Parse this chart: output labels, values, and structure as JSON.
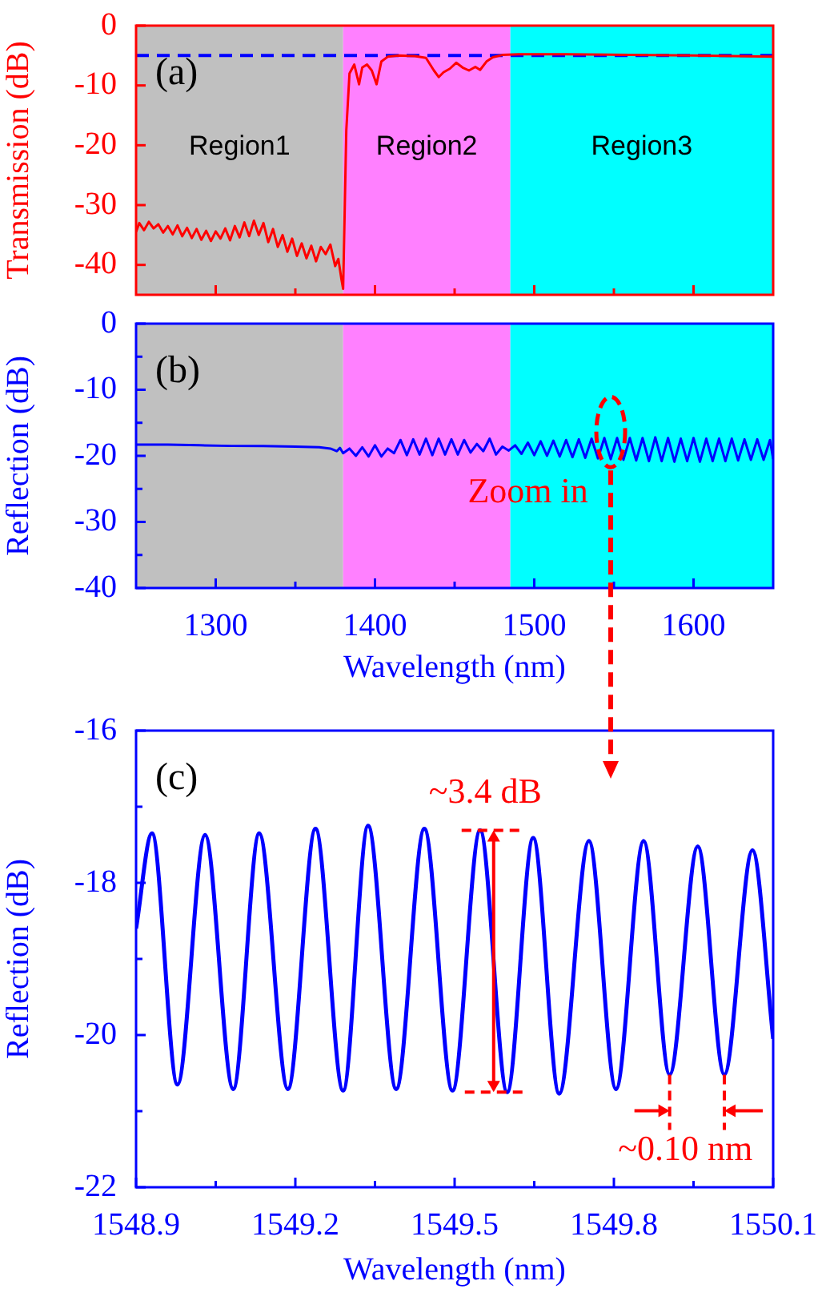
{
  "chart_data": [
    {
      "type": "line",
      "ylabel": "Transmission (dB)",
      "xlim": [
        1250,
        1650
      ],
      "ylim": [
        -45,
        0
      ],
      "tick_labels": "y",
      "xticks": [
        1300,
        {
          "value": 1350,
          "label": null
        },
        1400,
        {
          "value": 1450,
          "label": null
        },
        1500,
        {
          "value": 1550,
          "label": null
        },
        1600
      ],
      "yticks": [
        0,
        -10,
        -20,
        -30,
        -40
      ],
      "x": [
        1250,
        1252,
        1255,
        1258,
        1261,
        1264,
        1267,
        1270,
        1273,
        1276,
        1279,
        1282,
        1285,
        1288,
        1291,
        1294,
        1297,
        1300,
        1303,
        1306,
        1309,
        1312,
        1315,
        1318,
        1321,
        1324,
        1327,
        1330,
        1333,
        1336,
        1339,
        1342,
        1345,
        1348,
        1351,
        1354,
        1357,
        1360,
        1363,
        1366,
        1369,
        1372,
        1375,
        1377,
        1379,
        1380,
        1382,
        1384,
        1387,
        1390,
        1392,
        1395,
        1398,
        1401,
        1404,
        1408,
        1415,
        1425,
        1432,
        1437,
        1440,
        1443,
        1447,
        1451,
        1455,
        1459,
        1463,
        1466,
        1470,
        1474,
        1480,
        1490,
        1520,
        1560,
        1600,
        1650
      ],
      "series": [
        {
          "color": "#ff0000",
          "values": [
            -34.5,
            -33.0,
            -34.2,
            -32.8,
            -33.9,
            -33.2,
            -34.6,
            -33.5,
            -34.9,
            -33.4,
            -35.2,
            -33.8,
            -35.5,
            -34.0,
            -35.8,
            -34.3,
            -36.0,
            -34.4,
            -35.6,
            -33.9,
            -35.9,
            -33.5,
            -35.4,
            -32.9,
            -35.2,
            -32.6,
            -35.0,
            -33.0,
            -36.2,
            -34.0,
            -37.0,
            -35.0,
            -37.8,
            -35.6,
            -38.5,
            -36.4,
            -38.9,
            -36.8,
            -39.4,
            -37.0,
            -38.2,
            -36.6,
            -40.2,
            -39.0,
            -42.5,
            -44.0,
            -17.5,
            -8.0,
            -6.5,
            -9.8,
            -7.0,
            -6.5,
            -7.5,
            -9.8,
            -6.0,
            -5.2,
            -5.0,
            -5.1,
            -5.4,
            -7.5,
            -8.6,
            -7.8,
            -7.2,
            -6.2,
            -7.0,
            -7.5,
            -6.9,
            -7.4,
            -6.0,
            -5.3,
            -4.9,
            -4.8,
            -4.8,
            -4.9,
            -5.0,
            -5.2
          ]
        }
      ],
      "bands": [
        {
          "axis": "x",
          "from": 1250,
          "to": 1380,
          "label": "Region1",
          "color": "#c0c0c0"
        },
        {
          "axis": "x",
          "from": 1380,
          "to": 1485,
          "label": "Region2",
          "color": "#ff80ff"
        },
        {
          "axis": "x",
          "from": 1485,
          "to": 1650,
          "label": "Region3",
          "color": "#00ffff"
        }
      ],
      "ref_lines": [
        {
          "axis": "y",
          "value": -5,
          "color": "#0000ff",
          "line_style": "dashed"
        }
      ],
      "annotations": [
        "(a)"
      ]
    },
    {
      "type": "line",
      "xlabel": "Wavelength (nm)",
      "ylabel": "Reflection (dB)",
      "xlim": [
        1250,
        1650
      ],
      "ylim": [
        -40,
        0
      ],
      "xticks": [
        1300,
        {
          "value": 1350,
          "label": null
        },
        1400,
        {
          "value": 1450,
          "label": null
        },
        1500,
        {
          "value": 1550,
          "label": null
        },
        1600
      ],
      "yticks": [
        0,
        {
          "value": -5,
          "label": null
        },
        -10,
        {
          "value": -15,
          "label": null
        },
        -20,
        {
          "value": -25,
          "label": null
        },
        -30,
        {
          "value": -35,
          "label": null
        },
        -40
      ],
      "x": [
        1250,
        1270,
        1290,
        1310,
        1330,
        1350,
        1365,
        1372,
        1376,
        1378,
        1380,
        1384,
        1388,
        1392,
        1396,
        1400,
        1404,
        1408,
        1412,
        1416,
        1420,
        1424,
        1428,
        1432,
        1436,
        1440,
        1444,
        1448,
        1452,
        1456,
        1460,
        1464,
        1468,
        1472,
        1476,
        1480,
        1484,
        1488,
        1492,
        1496,
        1500,
        1504,
        1508,
        1512,
        1516,
        1520,
        1524,
        1528,
        1532,
        1536,
        1540,
        1544,
        1548,
        1552,
        1556,
        1560,
        1564,
        1568,
        1572,
        1576,
        1580,
        1584,
        1588,
        1592,
        1596,
        1600,
        1604,
        1608,
        1612,
        1616,
        1620,
        1624,
        1628,
        1632,
        1636,
        1640,
        1644,
        1648,
        1650
      ],
      "series": [
        {
          "color": "#0000ff",
          "values": [
            -18.3,
            -18.3,
            -18.4,
            -18.5,
            -18.5,
            -18.6,
            -18.7,
            -18.9,
            -19.3,
            -18.8,
            -19.6,
            -18.9,
            -20.0,
            -18.7,
            -20.1,
            -18.4,
            -20.1,
            -18.9,
            -19.6,
            -17.6,
            -19.9,
            -17.5,
            -19.8,
            -17.4,
            -19.9,
            -17.4,
            -19.8,
            -17.5,
            -19.8,
            -17.6,
            -19.5,
            -18.2,
            -19.3,
            -17.4,
            -19.8,
            -18.6,
            -19.2,
            -18.4,
            -19.7,
            -18.0,
            -19.9,
            -17.8,
            -20.0,
            -17.7,
            -20.1,
            -17.6,
            -20.2,
            -17.5,
            -20.3,
            -17.4,
            -20.4,
            -17.3,
            -20.5,
            -17.3,
            -20.6,
            -17.3,
            -20.7,
            -17.3,
            -20.8,
            -17.2,
            -20.8,
            -17.3,
            -20.9,
            -17.4,
            -20.8,
            -17.3,
            -20.9,
            -17.4,
            -20.8,
            -17.4,
            -20.8,
            -17.4,
            -20.7,
            -17.5,
            -20.6,
            -17.5,
            -20.6,
            -17.6,
            -20.5
          ]
        }
      ],
      "bands": [
        {
          "axis": "x",
          "from": 1250,
          "to": 1380,
          "color": "#c0c0c0"
        },
        {
          "axis": "x",
          "from": 1380,
          "to": 1485,
          "color": "#ff80ff"
        },
        {
          "axis": "x",
          "from": 1485,
          "to": 1650,
          "color": "#00ffff"
        }
      ],
      "annotations": [
        "(b)",
        "Zoom in"
      ]
    },
    {
      "type": "line",
      "xlabel": "Wavelength (nm)",
      "ylabel": "Reflection (dB)",
      "xlim": [
        1548.9,
        1550.1
      ],
      "ylim": [
        -22,
        -16
      ],
      "xticks": [
        1548.9,
        {
          "value": 1549.05,
          "label": null
        },
        1549.2,
        {
          "value": 1549.35,
          "label": null
        },
        1549.5,
        {
          "value": 1549.65,
          "label": null
        },
        1549.8,
        {
          "value": 1549.95,
          "label": null
        },
        1550.1
      ],
      "yticks": [
        -16,
        {
          "value": -17,
          "label": null
        },
        -18,
        {
          "value": -19,
          "label": null
        },
        -20,
        {
          "value": -21,
          "label": null
        },
        -22
      ],
      "x": [
        1548.9,
        1548.93,
        1548.978,
        1549.03,
        1549.083,
        1549.132,
        1549.186,
        1549.238,
        1549.29,
        1549.337,
        1549.39,
        1549.443,
        1549.496,
        1549.548,
        1549.599,
        1549.648,
        1549.697,
        1549.753,
        1549.804,
        1549.856,
        1549.905,
        1549.958,
        1550.008,
        1550.061,
        1550.1
      ],
      "series": [
        {
          "color": "#0000ff",
          "values": [
            -18.6,
            -17.35,
            -20.65,
            -17.37,
            -20.71,
            -17.35,
            -20.71,
            -17.29,
            -20.73,
            -17.25,
            -20.71,
            -17.29,
            -20.73,
            -17.31,
            -20.75,
            -17.41,
            -20.77,
            -17.45,
            -20.71,
            -17.45,
            -20.52,
            -17.52,
            -20.52,
            -17.57,
            -20.05
          ]
        }
      ],
      "annotations": [
        "(c)",
        "~3.4 dB",
        {
          "text": "~0.10 nm",
          "x": 1549.905,
          "y": -20.52
        }
      ]
    }
  ]
}
